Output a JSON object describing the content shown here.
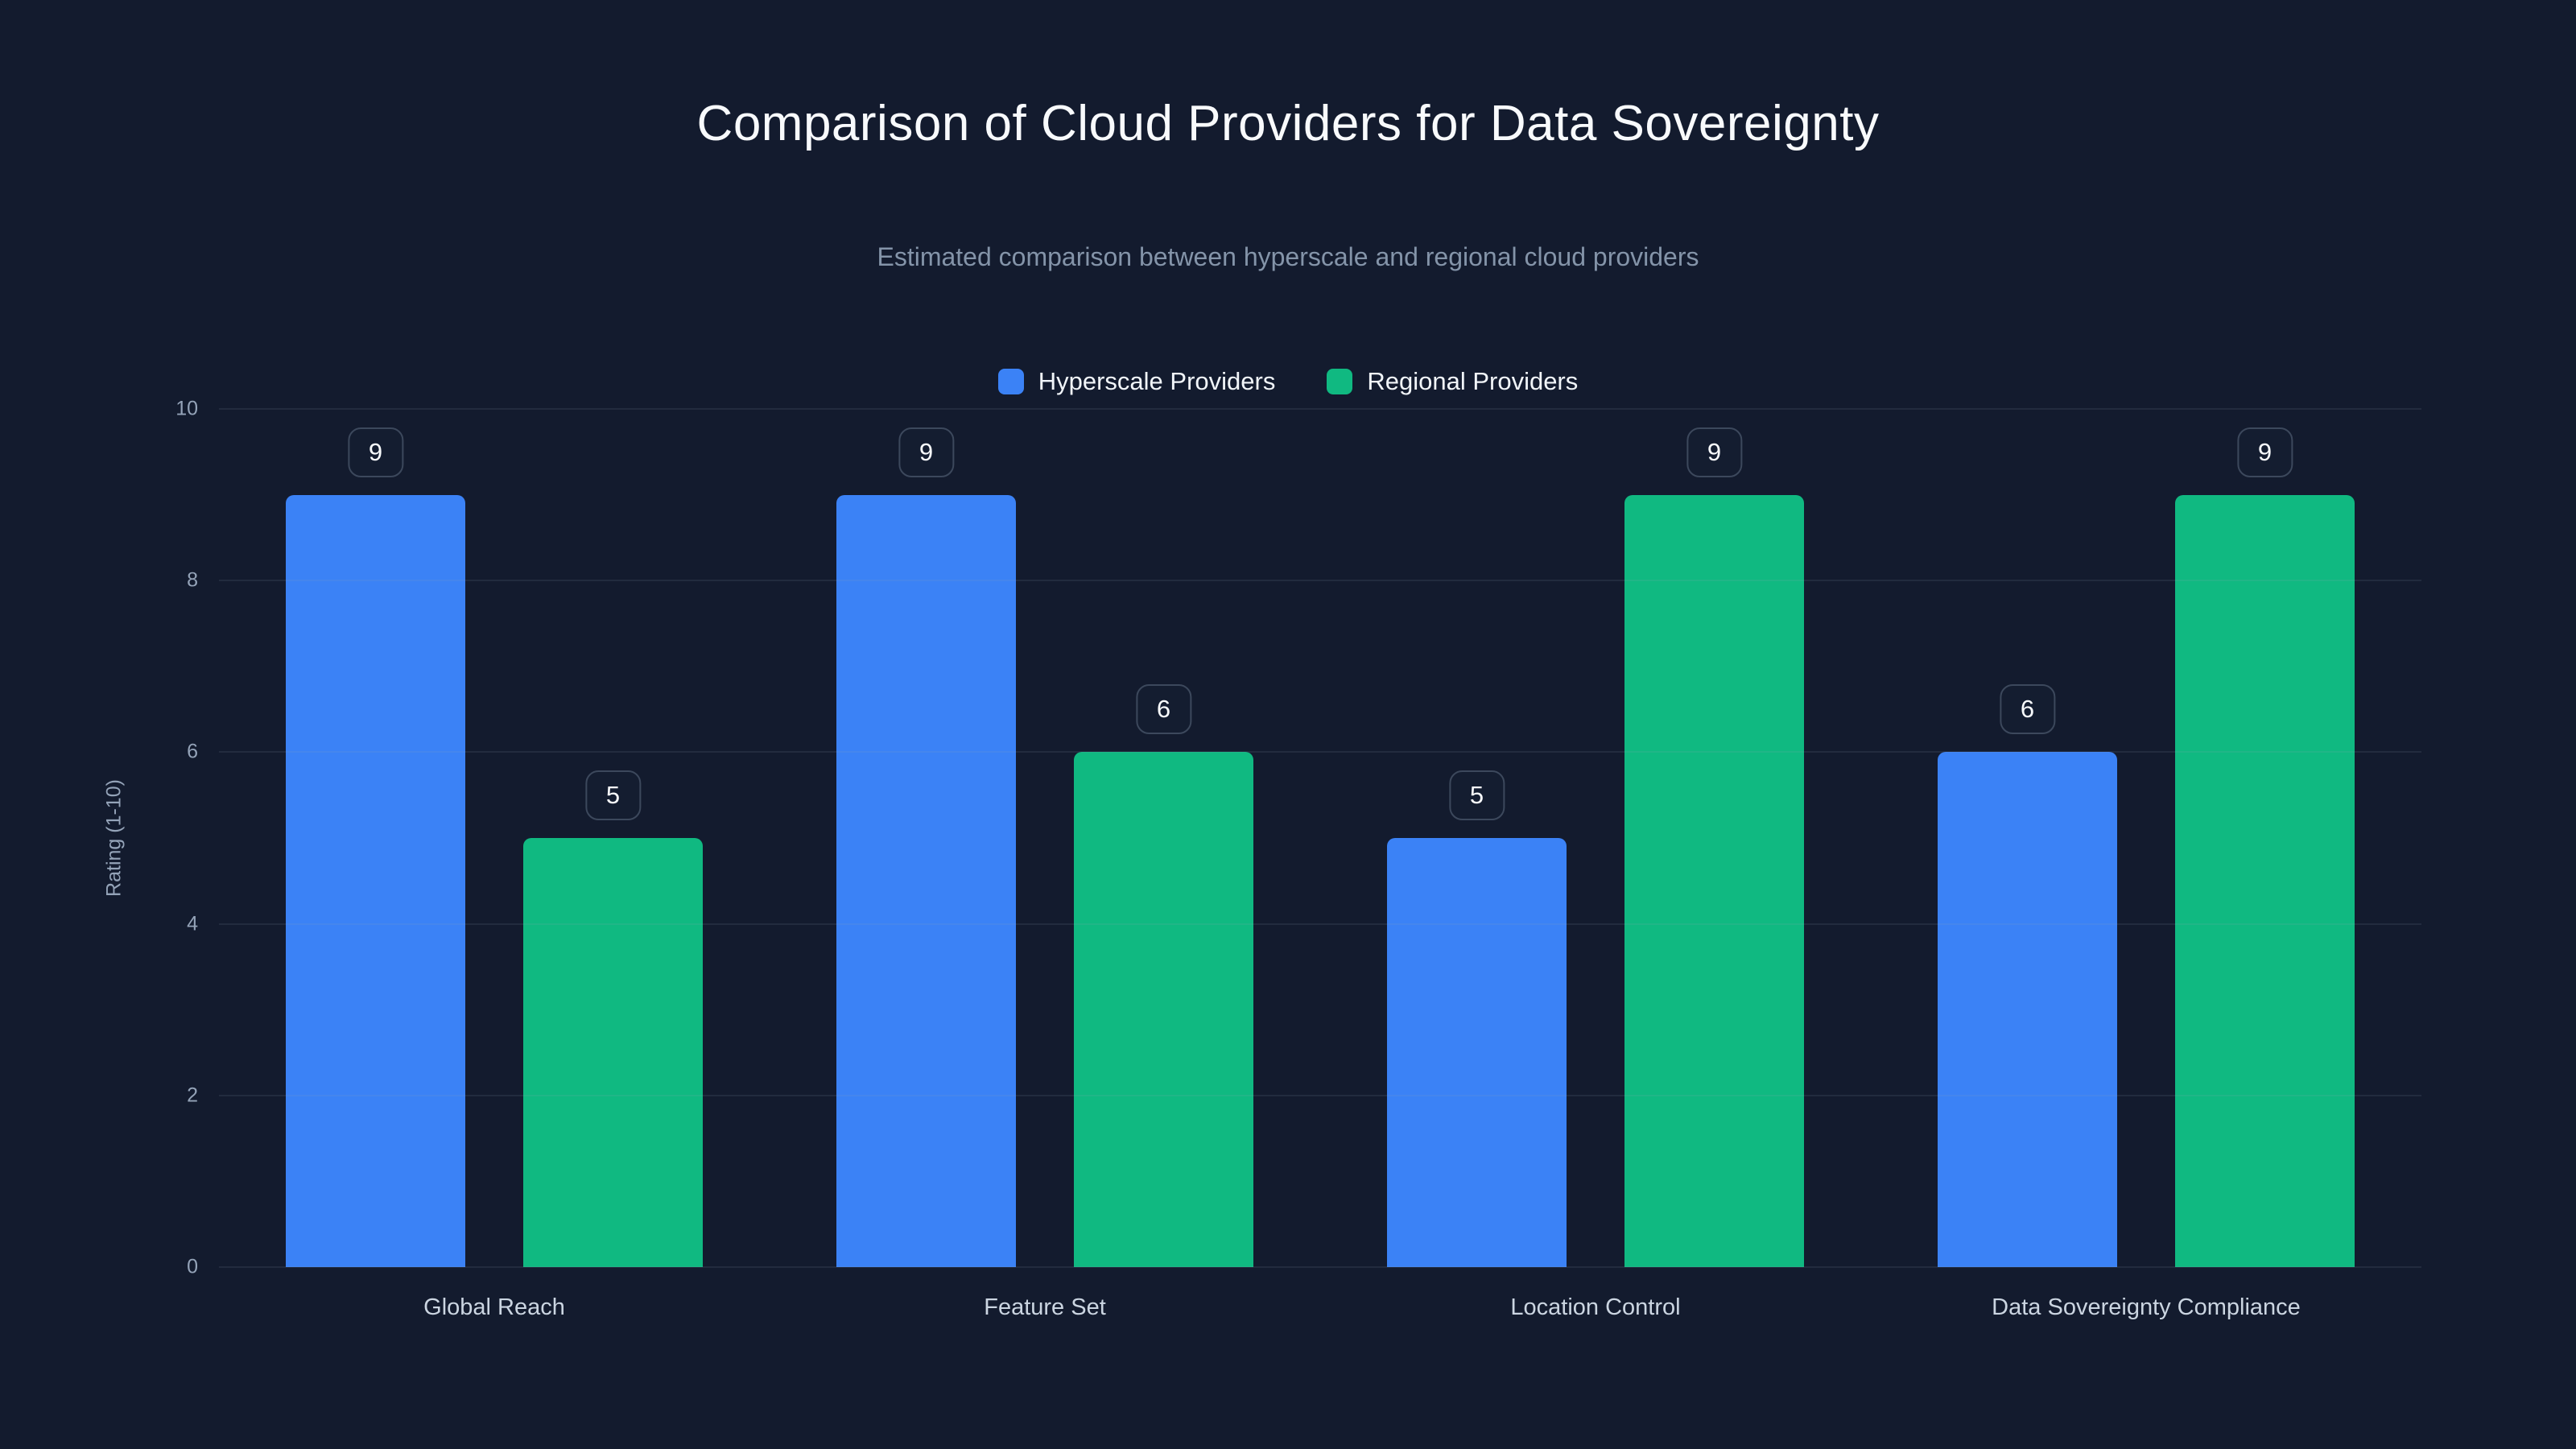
{
  "page": {
    "background": "#131b2e",
    "title": "Comparison of Cloud Providers for Data Sovereignty",
    "subtitle": "Estimated comparison between hyperscale and regional cloud providers"
  },
  "chart_data": {
    "type": "bar",
    "title": "Comparison of Cloud Providers for Data Sovereignty",
    "subtitle": "Estimated comparison between hyperscale and regional cloud providers",
    "categories": [
      "Global Reach",
      "Feature Set",
      "Location Control",
      "Data Sovereignty Compliance"
    ],
    "series": [
      {
        "name": "Hyperscale Providers",
        "color": "#3b82f6",
        "values": [
          9,
          9,
          5,
          6
        ]
      },
      {
        "name": "Regional Providers",
        "color": "#10b981",
        "values": [
          5,
          6,
          9,
          9
        ]
      }
    ],
    "ylabel": "Rating (1-10)",
    "ylim": [
      0,
      10
    ],
    "yticks": [
      0,
      2,
      4,
      6,
      8,
      10
    ],
    "grid": true,
    "legend_position": "top",
    "data_labels": true,
    "colors": {
      "background": "#131b2e",
      "title_text": "#f8fafc",
      "subtitle_text": "#8494a9",
      "tick_text": "#94a3b8",
      "gridline": "rgba(148,163,184,0.12)"
    }
  }
}
